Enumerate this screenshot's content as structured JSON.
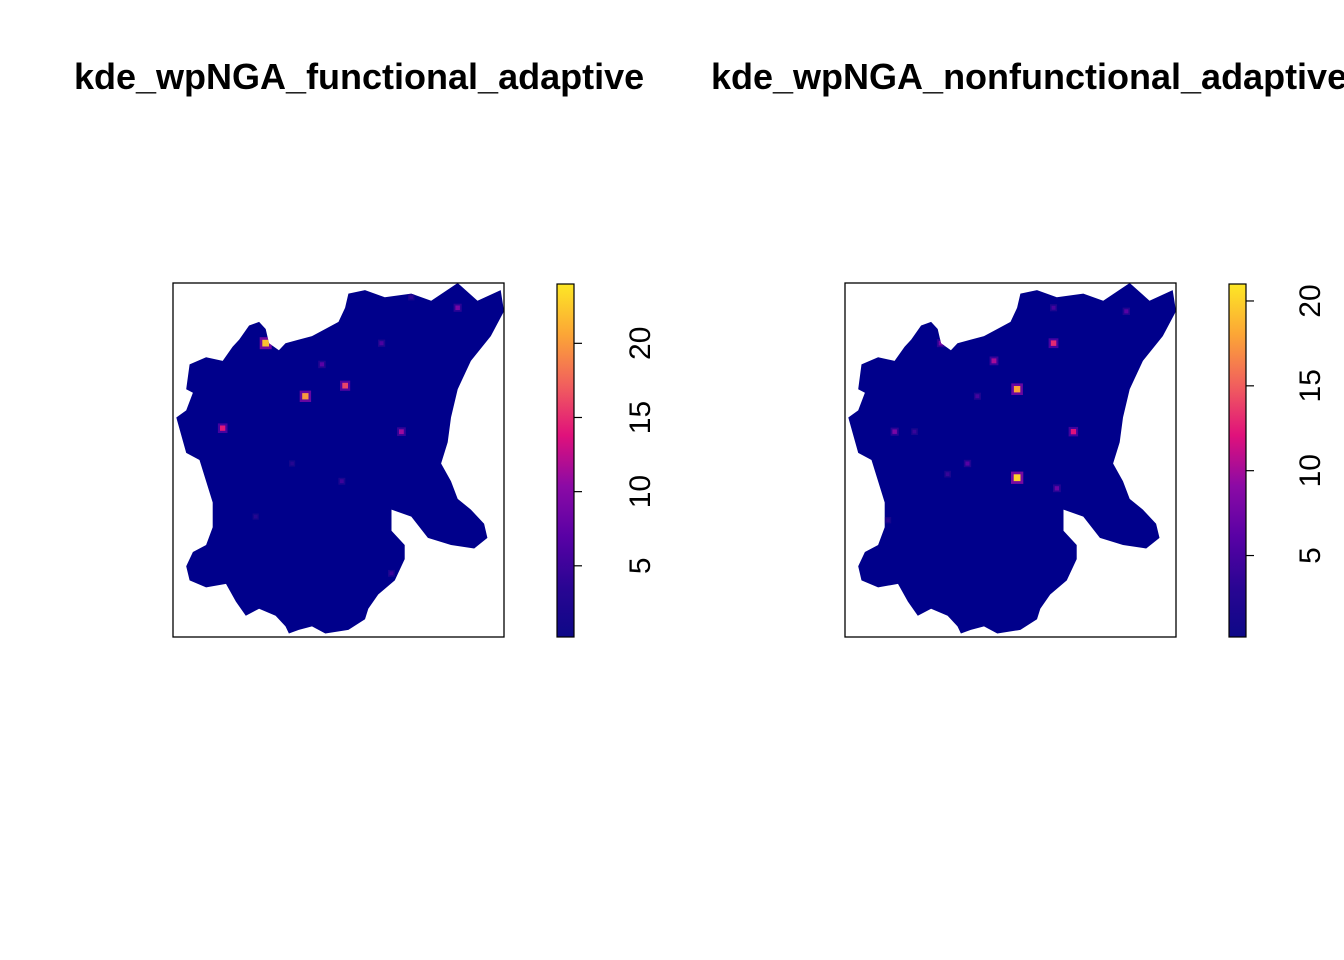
{
  "chart_data": [
    {
      "type": "heatmap",
      "title": "kde_wpNGA_functional_adaptive",
      "colorbar_ticks": [
        5,
        10,
        15,
        20
      ],
      "value_range": [
        0.2,
        24
      ],
      "background_color": "#00008B",
      "palette": [
        "#0D0887",
        "#2A0593",
        "#5901A5",
        "#8C0AA5",
        "#E0117B",
        "#F1605D",
        "#FCA636",
        "#FDE725"
      ],
      "hotspots": [
        {
          "lon": 0.28,
          "lat": 0.83,
          "value": 22
        },
        {
          "lon": 0.4,
          "lat": 0.68,
          "value": 20
        },
        {
          "lon": 0.52,
          "lat": 0.71,
          "value": 16
        },
        {
          "lon": 0.15,
          "lat": 0.59,
          "value": 14
        },
        {
          "lon": 0.69,
          "lat": 0.58,
          "value": 11
        },
        {
          "lon": 0.86,
          "lat": 0.93,
          "value": 9
        },
        {
          "lon": 0.45,
          "lat": 0.77,
          "value": 7
        },
        {
          "lon": 0.63,
          "lat": 0.83,
          "value": 6
        },
        {
          "lon": 0.51,
          "lat": 0.44,
          "value": 5
        },
        {
          "lon": 0.66,
          "lat": 0.18,
          "value": 5
        },
        {
          "lon": 0.72,
          "lat": 0.96,
          "value": 4
        },
        {
          "lon": 0.25,
          "lat": 0.34,
          "value": 3
        },
        {
          "lon": 0.36,
          "lat": 0.49,
          "value": 3
        }
      ]
    },
    {
      "type": "heatmap",
      "title": "kde_wpNGA_nonfunctional_adaptive",
      "colorbar_ticks": [
        5,
        10,
        15,
        20
      ],
      "value_range": [
        0.2,
        21
      ],
      "background_color": "#00008B",
      "palette": [
        "#0D0887",
        "#2A0593",
        "#5901A5",
        "#8C0AA5",
        "#E0117B",
        "#F1605D",
        "#FCA636",
        "#FDE725"
      ],
      "hotspots": [
        {
          "lon": 0.52,
          "lat": 0.45,
          "value": 20
        },
        {
          "lon": 0.52,
          "lat": 0.7,
          "value": 18
        },
        {
          "lon": 0.63,
          "lat": 0.83,
          "value": 13
        },
        {
          "lon": 0.69,
          "lat": 0.58,
          "value": 12
        },
        {
          "lon": 0.45,
          "lat": 0.78,
          "value": 10
        },
        {
          "lon": 0.29,
          "lat": 0.83,
          "value": 8
        },
        {
          "lon": 0.15,
          "lat": 0.58,
          "value": 8
        },
        {
          "lon": 0.64,
          "lat": 0.42,
          "value": 7
        },
        {
          "lon": 0.85,
          "lat": 0.92,
          "value": 6
        },
        {
          "lon": 0.37,
          "lat": 0.49,
          "value": 6
        },
        {
          "lon": 0.63,
          "lat": 0.93,
          "value": 5
        },
        {
          "lon": 0.4,
          "lat": 0.68,
          "value": 5
        },
        {
          "lon": 0.31,
          "lat": 0.46,
          "value": 4
        },
        {
          "lon": 0.21,
          "lat": 0.58,
          "value": 4
        },
        {
          "lon": 0.13,
          "lat": 0.33,
          "value": 3
        }
      ]
    }
  ]
}
